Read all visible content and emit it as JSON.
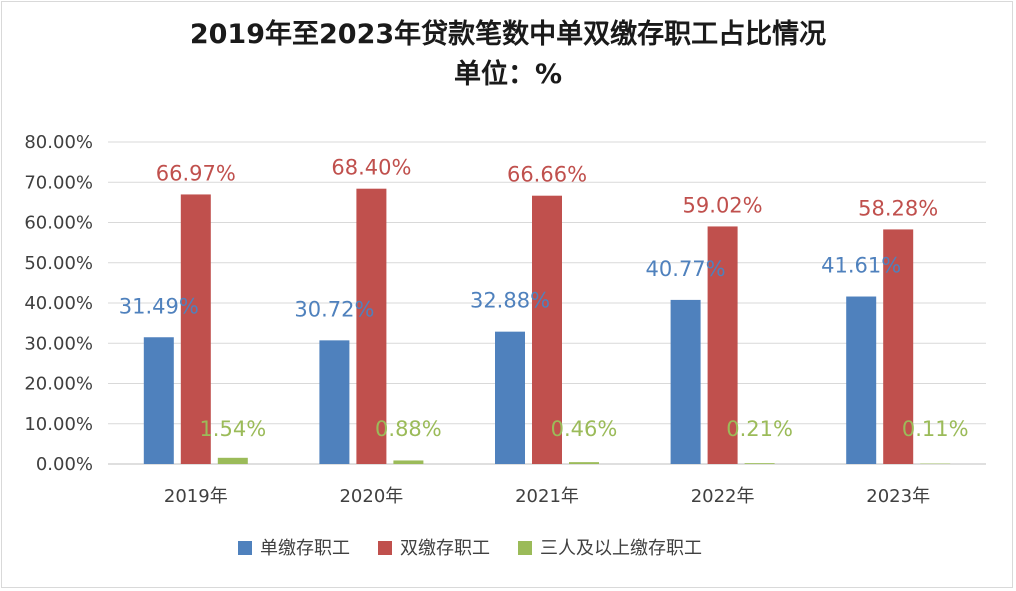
{
  "chart_data": {
    "type": "bar",
    "title": "2019年至2023年贷款笔数中单双缴存职工占比情况",
    "subtitle": "单位：%",
    "categories": [
      "2019年",
      "2020年",
      "2021年",
      "2022年",
      "2023年"
    ],
    "series": [
      {
        "name": "单缴存职工",
        "color": "#4f81bd",
        "label_color": "#4f81bd",
        "values": [
          31.49,
          30.72,
          32.88,
          40.77,
          41.61
        ],
        "labels": [
          "31.49%",
          "30.72%",
          "32.88%",
          "40.77%",
          "41.61%"
        ]
      },
      {
        "name": "双缴存职工",
        "color": "#c0504d",
        "label_color": "#c0504d",
        "values": [
          66.97,
          68.4,
          66.66,
          59.02,
          58.28
        ],
        "labels": [
          "66.97%",
          "68.40%",
          "66.66%",
          "59.02%",
          "58.28%"
        ]
      },
      {
        "name": "三人及以上缴存职工",
        "color": "#9bbb59",
        "label_color": "#9bbb59",
        "values": [
          1.54,
          0.88,
          0.46,
          0.21,
          0.11
        ],
        "labels": [
          "1.54%",
          "0.88%",
          "0.46%",
          "0.21%",
          "0.11%"
        ]
      }
    ],
    "ylim": [
      0,
      80
    ],
    "yticks": [
      0,
      10,
      20,
      30,
      40,
      50,
      60,
      70,
      80
    ],
    "ytick_labels": [
      "0.00%",
      "10.00%",
      "20.00%",
      "30.00%",
      "40.00%",
      "50.00%",
      "60.00%",
      "70.00%",
      "80.00%"
    ],
    "grid": true,
    "legend_position": "bottom"
  }
}
